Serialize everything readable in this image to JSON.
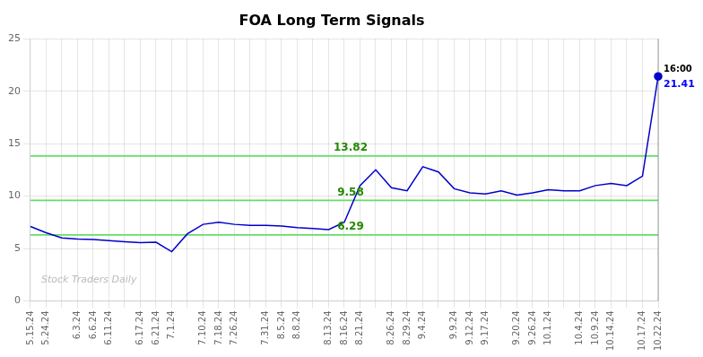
{
  "chart_data": {
    "type": "line",
    "title": "FOA Long Term Signals",
    "categories": [
      "5.15.24",
      "5.24.24",
      null,
      "6.3.24",
      "6.6.24",
      "6.11.24",
      null,
      "6.17.24",
      "6.21.24",
      "7.1.24",
      null,
      "7.10.24",
      "7.18.24",
      "7.26.24",
      null,
      "7.31.24",
      "8.5.24",
      "8.8.24",
      null,
      "8.13.24",
      "8.16.24",
      "8.21.24",
      null,
      "8.26.24",
      "8.29.24",
      "9.4.24",
      null,
      "9.9.24",
      "9.12.24",
      "9.17.24",
      null,
      "9.20.24",
      "9.26.24",
      "10.1.24",
      null,
      "10.4.24",
      "10.9.24",
      "10.14.24",
      null,
      "10.17.24",
      "10.22.24"
    ],
    "series": [
      {
        "color": "#0000cc",
        "values": [
          7.1,
          6.5,
          6.0,
          5.9,
          5.85,
          5.75,
          5.65,
          5.55,
          5.6,
          4.7,
          6.4,
          7.3,
          7.5,
          7.3,
          7.2,
          7.2,
          7.15,
          7.0,
          6.9,
          6.8,
          7.5,
          11.0,
          12.5,
          10.8,
          10.5,
          12.8,
          12.3,
          10.7,
          10.3,
          10.2,
          10.5,
          10.1,
          10.3,
          10.6,
          10.5,
          10.5,
          11.0,
          11.2,
          11.0,
          11.9,
          21.41
        ]
      }
    ],
    "hlines": {
      "color": "#66dd66",
      "label_color": "#228800",
      "lines": [
        {
          "value": 6.29,
          "label": "6.29"
        },
        {
          "value": 9.58,
          "label": "9.58"
        },
        {
          "value": 13.82,
          "label": "13.82"
        }
      ]
    },
    "annotations": [
      {
        "text": "16:00",
        "color": "#000000"
      },
      {
        "text": "21.41",
        "color": "#0000ff"
      }
    ],
    "watermark": {
      "text": "Stock Traders Daily",
      "color": "#bbbbbb"
    },
    "ylim": [
      0,
      25
    ],
    "yticks": [
      0,
      5,
      10,
      15,
      20,
      25
    ],
    "grid": true
  }
}
